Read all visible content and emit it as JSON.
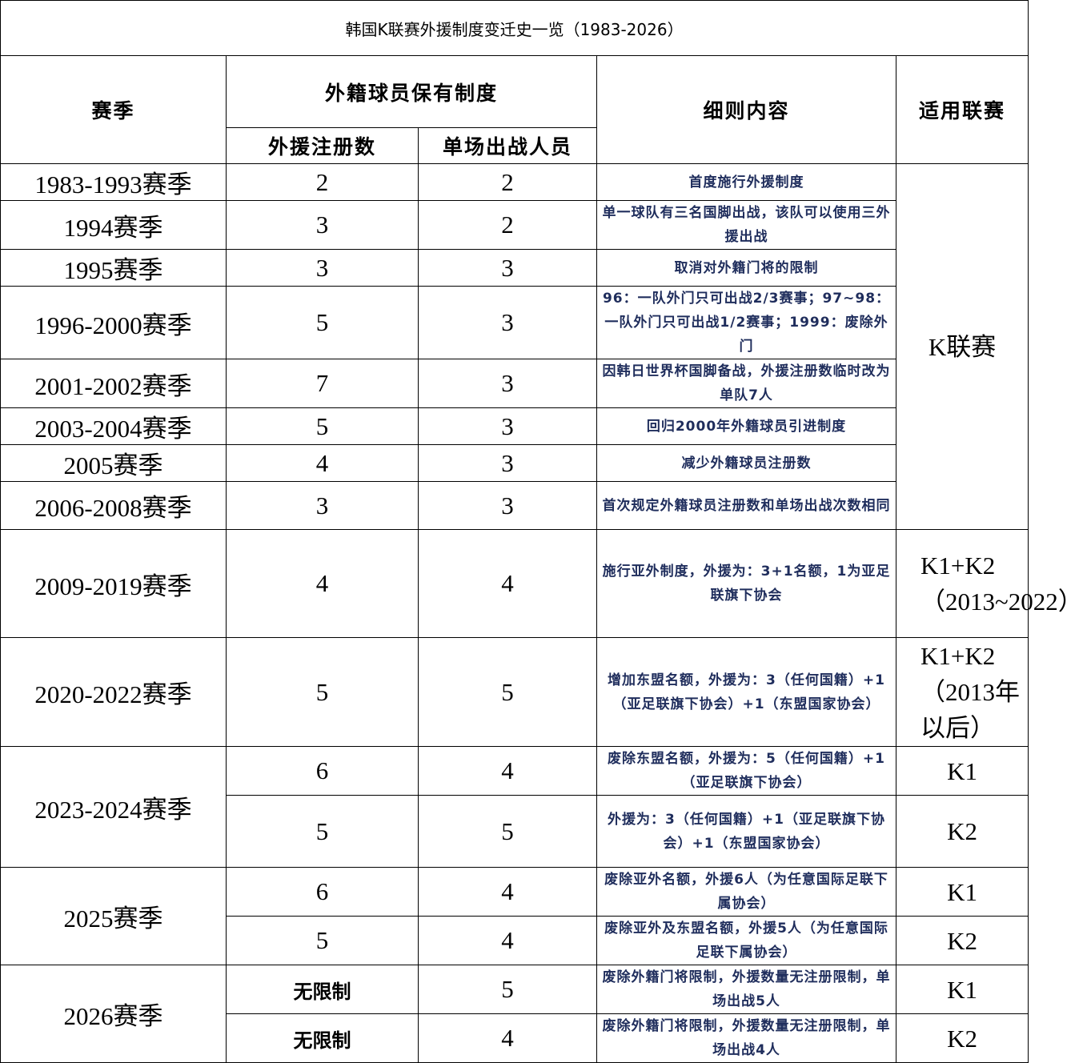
{
  "title": "韩国K联赛外援制度变迁史一览（1983-2026）",
  "headers": {
    "season": "赛季",
    "system": "外籍球员保有制度",
    "registered": "外援注册数",
    "per_match": "单场出战人员",
    "details": "细则内容",
    "league": "适用联赛"
  },
  "seasons": [
    {
      "season": "1983-1993赛季",
      "entries": [
        {
          "registered": "2",
          "per_match": "2",
          "details": "首度施行外援制度",
          "league": "K联赛"
        }
      ]
    },
    {
      "season": "1994赛季",
      "entries": [
        {
          "registered": "3",
          "per_match": "2",
          "details": "单一球队有三名国脚出战，该队可以使用三外援出战",
          "league": "K联赛"
        }
      ]
    },
    {
      "season": "1995赛季",
      "entries": [
        {
          "registered": "3",
          "per_match": "3",
          "details": "取消对外籍门将的限制",
          "league": "K联赛"
        }
      ]
    },
    {
      "season": "1996-2000赛季",
      "entries": [
        {
          "registered": "5",
          "per_match": "3",
          "details": "96：一队外门只可出战2/3赛事；97~98：一队外门只可出战1/2赛事；1999：废除外门",
          "league": "K联赛"
        }
      ]
    },
    {
      "season": "2001-2002赛季",
      "entries": [
        {
          "registered": "7",
          "per_match": "3",
          "details": "因韩日世界杯国脚备战，外援注册数临时改为单队7人",
          "league": "K联赛"
        }
      ]
    },
    {
      "season": "2003-2004赛季",
      "entries": [
        {
          "registered": "5",
          "per_match": "3",
          "details": "回归2000年外籍球员引进制度",
          "league": "K联赛"
        }
      ]
    },
    {
      "season": "2005赛季",
      "entries": [
        {
          "registered": "4",
          "per_match": "3",
          "details": "减少外籍球员注册数",
          "league": "K联赛"
        }
      ]
    },
    {
      "season": "2006-2008赛季",
      "entries": [
        {
          "registered": "3",
          "per_match": "3",
          "details": "首次规定外籍球员注册数和单场出战次数相同",
          "league": "K联赛"
        }
      ]
    },
    {
      "season": "2009-2019赛季",
      "entries": [
        {
          "registered": "4",
          "per_match": "4",
          "details": "施行亚外制度，外援为：3+1名额，1为亚足联旗下协会",
          "league": "K1+K2（2013~2022）"
        }
      ]
    },
    {
      "season": "2020-2022赛季",
      "entries": [
        {
          "registered": "5",
          "per_match": "5",
          "details": "增加东盟名额，外援为：3（任何国籍）+1（亚足联旗下协会）+1（东盟国家协会）",
          "league": "K1+K2（2013年以后）"
        }
      ]
    },
    {
      "season": "2023-2024赛季",
      "entries": [
        {
          "registered": "6",
          "per_match": "4",
          "details": "废除东盟名额，外援为：5（任何国籍）+1（亚足联旗下协会）",
          "league": "K1"
        },
        {
          "registered": "5",
          "per_match": "5",
          "details": "外援为：3（任何国籍）+1（亚足联旗下协会）+1（东盟国家协会）",
          "league": "K2"
        }
      ]
    },
    {
      "season": "2025赛季",
      "entries": [
        {
          "registered": "6",
          "per_match": "4",
          "details": "废除亚外名额，外援6人（为任意国际足联下属协会）",
          "league": "K1"
        },
        {
          "registered": "5",
          "per_match": "4",
          "details": "废除亚外及东盟名额，外援5人（为任意国际足联下属协会）",
          "league": "K2"
        }
      ]
    },
    {
      "season": "2026赛季",
      "entries": [
        {
          "registered": "无限制",
          "per_match": "5",
          "details": "废除外籍门将限制，外援数量无注册限制，单场出战5人",
          "league": "K1"
        },
        {
          "registered": "无限制",
          "per_match": "4",
          "details": "废除外籍门将限制，外援数量无注册限制，单场出战4人",
          "league": "K2"
        }
      ]
    }
  ]
}
